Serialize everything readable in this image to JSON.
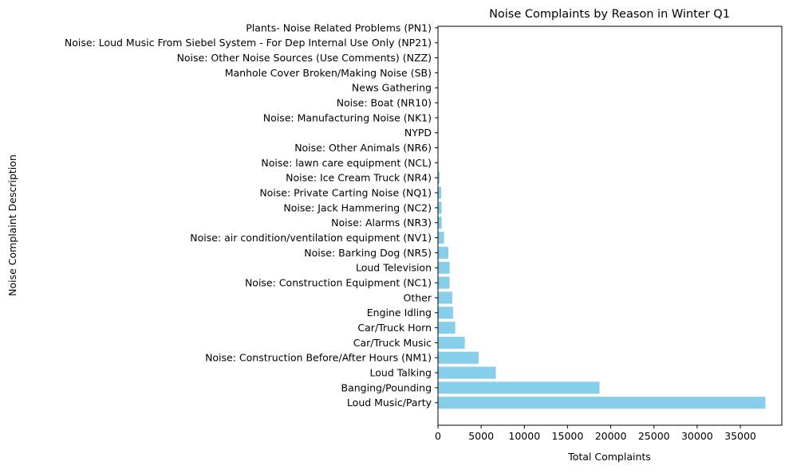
{
  "chart_data": {
    "type": "bar",
    "orientation": "horizontal",
    "title": "Noise Complaints by Reason in Winter Q1",
    "xlabel": "Total Complaints",
    "ylabel": "Noise Complaint Description",
    "xlim": [
      0,
      39800
    ],
    "xticks": [
      0,
      5000,
      10000,
      15000,
      20000,
      25000,
      30000,
      35000
    ],
    "grid": false,
    "bar_color": "#87CEEB",
    "categories": [
      "Loud Music/Party",
      "Banging/Pounding",
      "Loud Talking",
      "Noise: Construction Before/After Hours (NM1)",
      "Car/Truck Music",
      "Car/Truck Horn",
      "Engine Idling",
      "Other",
      "Noise: Construction Equipment (NC1)",
      "Loud Television",
      "Noise: Barking Dog (NR5)",
      "Noise: air condition/ventilation equipment (NV1)",
      "Noise: Alarms (NR3)",
      "Noise: Jack Hammering (NC2)",
      "Noise: Private Carting Noise (NQ1)",
      "Noise: Ice Cream Truck (NR4)",
      "Noise: lawn care equipment (NCL)",
      "Noise: Other Animals (NR6)",
      "NYPD",
      "Noise: Manufacturing Noise (NK1)",
      "Noise: Boat (NR10)",
      "News Gathering",
      "Manhole Cover Broken/Making Noise (SB)",
      "Noise: Other Noise Sources (Use Comments) (NZZ)",
      "Noise: Loud Music From Siebel System - For Dep Internal Use Only (NP21)",
      "Plants- Noise Related Problems (PN1)"
    ],
    "values": [
      37900,
      18700,
      6700,
      4700,
      3100,
      2000,
      1750,
      1650,
      1350,
      1350,
      1200,
      700,
      430,
      420,
      370,
      180,
      25,
      15,
      10,
      5,
      3,
      2,
      1,
      1,
      1,
      1
    ]
  }
}
